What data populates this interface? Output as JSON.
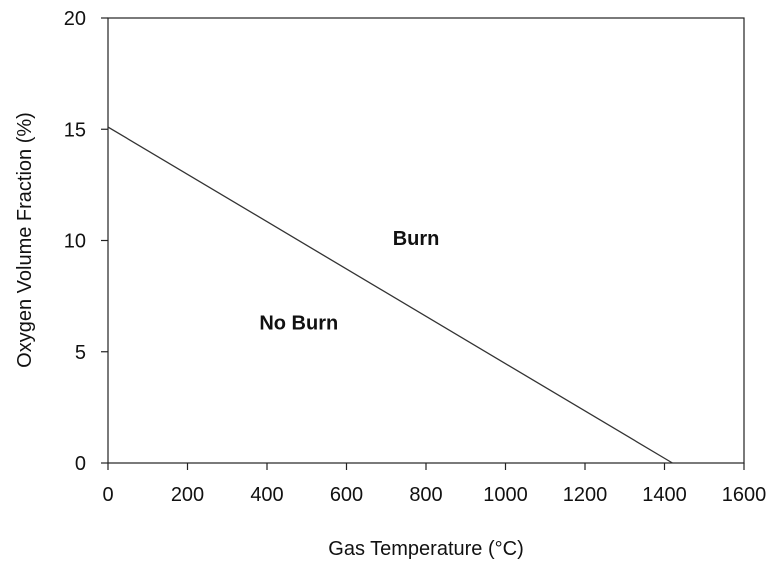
{
  "chart_data": {
    "type": "line",
    "xlabel": "Gas Temperature (°C)",
    "ylabel": "Oxygen Volume Fraction (%)",
    "xlim": [
      0,
      1600
    ],
    "ylim": [
      0,
      20
    ],
    "xticks": [
      0,
      200,
      400,
      600,
      800,
      1000,
      1200,
      1400,
      1600
    ],
    "yticks": [
      0,
      5,
      10,
      15,
      20
    ],
    "grid": false,
    "series": [
      {
        "x": [
          0,
          1420
        ],
        "y": [
          15.1,
          0
        ]
      }
    ],
    "annotations": [
      {
        "text": "Burn",
        "x": 775,
        "y": 9.8
      },
      {
        "text": "No Burn",
        "x": 480,
        "y": 6.0
      }
    ]
  }
}
